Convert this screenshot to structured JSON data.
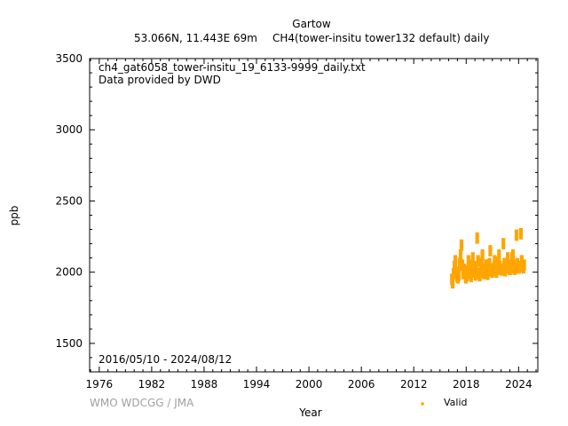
{
  "chart_data": {
    "type": "scatter",
    "title": "Gartow",
    "subtitle_left": "53.066N, 11.443E 69m",
    "subtitle_right": "CH4(tower-insitu tower132 default) daily",
    "xlabel": "Year",
    "ylabel": "ppb",
    "xlim": [
      1974.9,
      2026.2
    ],
    "ylim": [
      1300,
      3500
    ],
    "xticks": [
      1976,
      1982,
      1988,
      1994,
      2000,
      2006,
      2012,
      2018,
      2024
    ],
    "yticks": [
      1500,
      2000,
      2500,
      3000,
      3500
    ],
    "annotations": {
      "file": "ch4_gat6058_tower-insitu_19_6133-9999_daily.txt",
      "provider": "Data provided by DWD",
      "period": "2016/05/10 - 2024/08/12"
    },
    "legend": {
      "position": "bottom-right",
      "label": "Valid",
      "color": "#ffa500"
    },
    "series": [
      {
        "name": "Valid",
        "color": "#ffa500",
        "x": [
          2016.36,
          2016.45,
          2016.55,
          2016.65,
          2016.75,
          2016.85,
          2016.95,
          2017.05,
          2017.15,
          2017.25,
          2017.35,
          2017.45,
          2017.55,
          2017.65,
          2017.75,
          2017.85,
          2017.95,
          2018.05,
          2018.15,
          2018.25,
          2018.35,
          2018.45,
          2018.55,
          2018.65,
          2018.75,
          2018.85,
          2018.95,
          2019.05,
          2019.15,
          2019.25,
          2019.35,
          2019.45,
          2019.55,
          2019.65,
          2019.75,
          2019.85,
          2019.95,
          2020.05,
          2020.15,
          2020.25,
          2020.35,
          2020.45,
          2020.55,
          2020.65,
          2020.75,
          2020.85,
          2020.95,
          2021.05,
          2021.15,
          2021.25,
          2021.35,
          2021.45,
          2021.55,
          2021.65,
          2021.75,
          2021.85,
          2021.95,
          2022.05,
          2022.15,
          2022.25,
          2022.35,
          2022.45,
          2022.55,
          2022.65,
          2022.75,
          2022.85,
          2022.95,
          2023.05,
          2023.15,
          2023.25,
          2023.35,
          2023.45,
          2023.55,
          2023.65,
          2023.75,
          2023.85,
          2023.95,
          2024.05,
          2024.15,
          2024.25,
          2024.35,
          2024.45,
          2024.55,
          2024.62
        ],
        "y": [
          1950,
          1925,
          1990,
          2040,
          2080,
          2000,
          1970,
          1960,
          1980,
          2060,
          2120,
          2190,
          2050,
          1990,
          2020,
          2000,
          1960,
          1975,
          2010,
          2080,
          2050,
          1990,
          1970,
          2030,
          2100,
          2000,
          2040,
          1980,
          2020,
          2240,
          2080,
          1990,
          1975,
          2000,
          2060,
          2120,
          2010,
          1990,
          2020,
          2050,
          2000,
          1985,
          2010,
          2060,
          2150,
          2020,
          2000,
          2010,
          2030,
          2080,
          2010,
          2000,
          2020,
          2070,
          2120,
          2040,
          2020,
          2015,
          2020,
          2200,
          2060,
          2010,
          2030,
          2060,
          2100,
          2050,
          2020,
          2020,
          2040,
          2100,
          2120,
          2030,
          2020,
          2050,
          2260,
          2060,
          2030,
          2030,
          2040,
          2270,
          2080,
          2040,
          2030,
          2050
        ]
      }
    ]
  }
}
